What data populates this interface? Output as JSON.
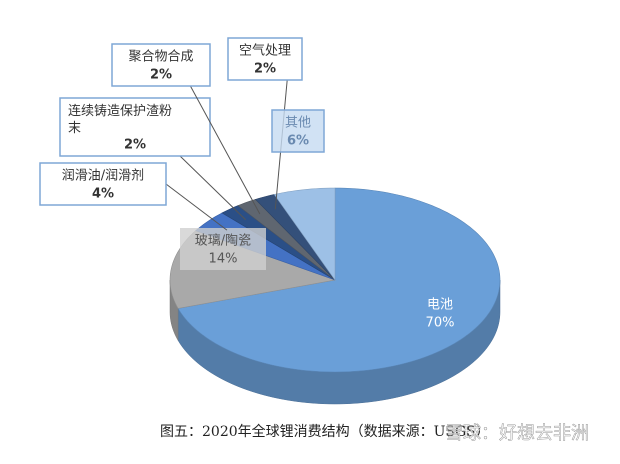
{
  "chart_data": {
    "type": "pie",
    "title": "图五：2020年全球锂消费结构（数据来源：USGS）",
    "watermark": "雪球：好想去非洲",
    "categories": [
      "电池",
      "玻璃/陶瓷",
      "润滑油/润滑剂",
      "连续铸造保护渣粉末",
      "聚合物合成",
      "空气处理",
      "其他"
    ],
    "values": [
      70,
      14,
      4,
      2,
      2,
      2,
      6
    ],
    "value_labels": [
      "70%",
      "14%",
      "4%",
      "2%",
      "2%",
      "2%",
      "6%"
    ],
    "colors": [
      "#6a9fd8",
      "#a9a9a9",
      "#4472c4",
      "#2b4f86",
      "#5f6670",
      "#34507a",
      "#9dc0e6"
    ]
  }
}
